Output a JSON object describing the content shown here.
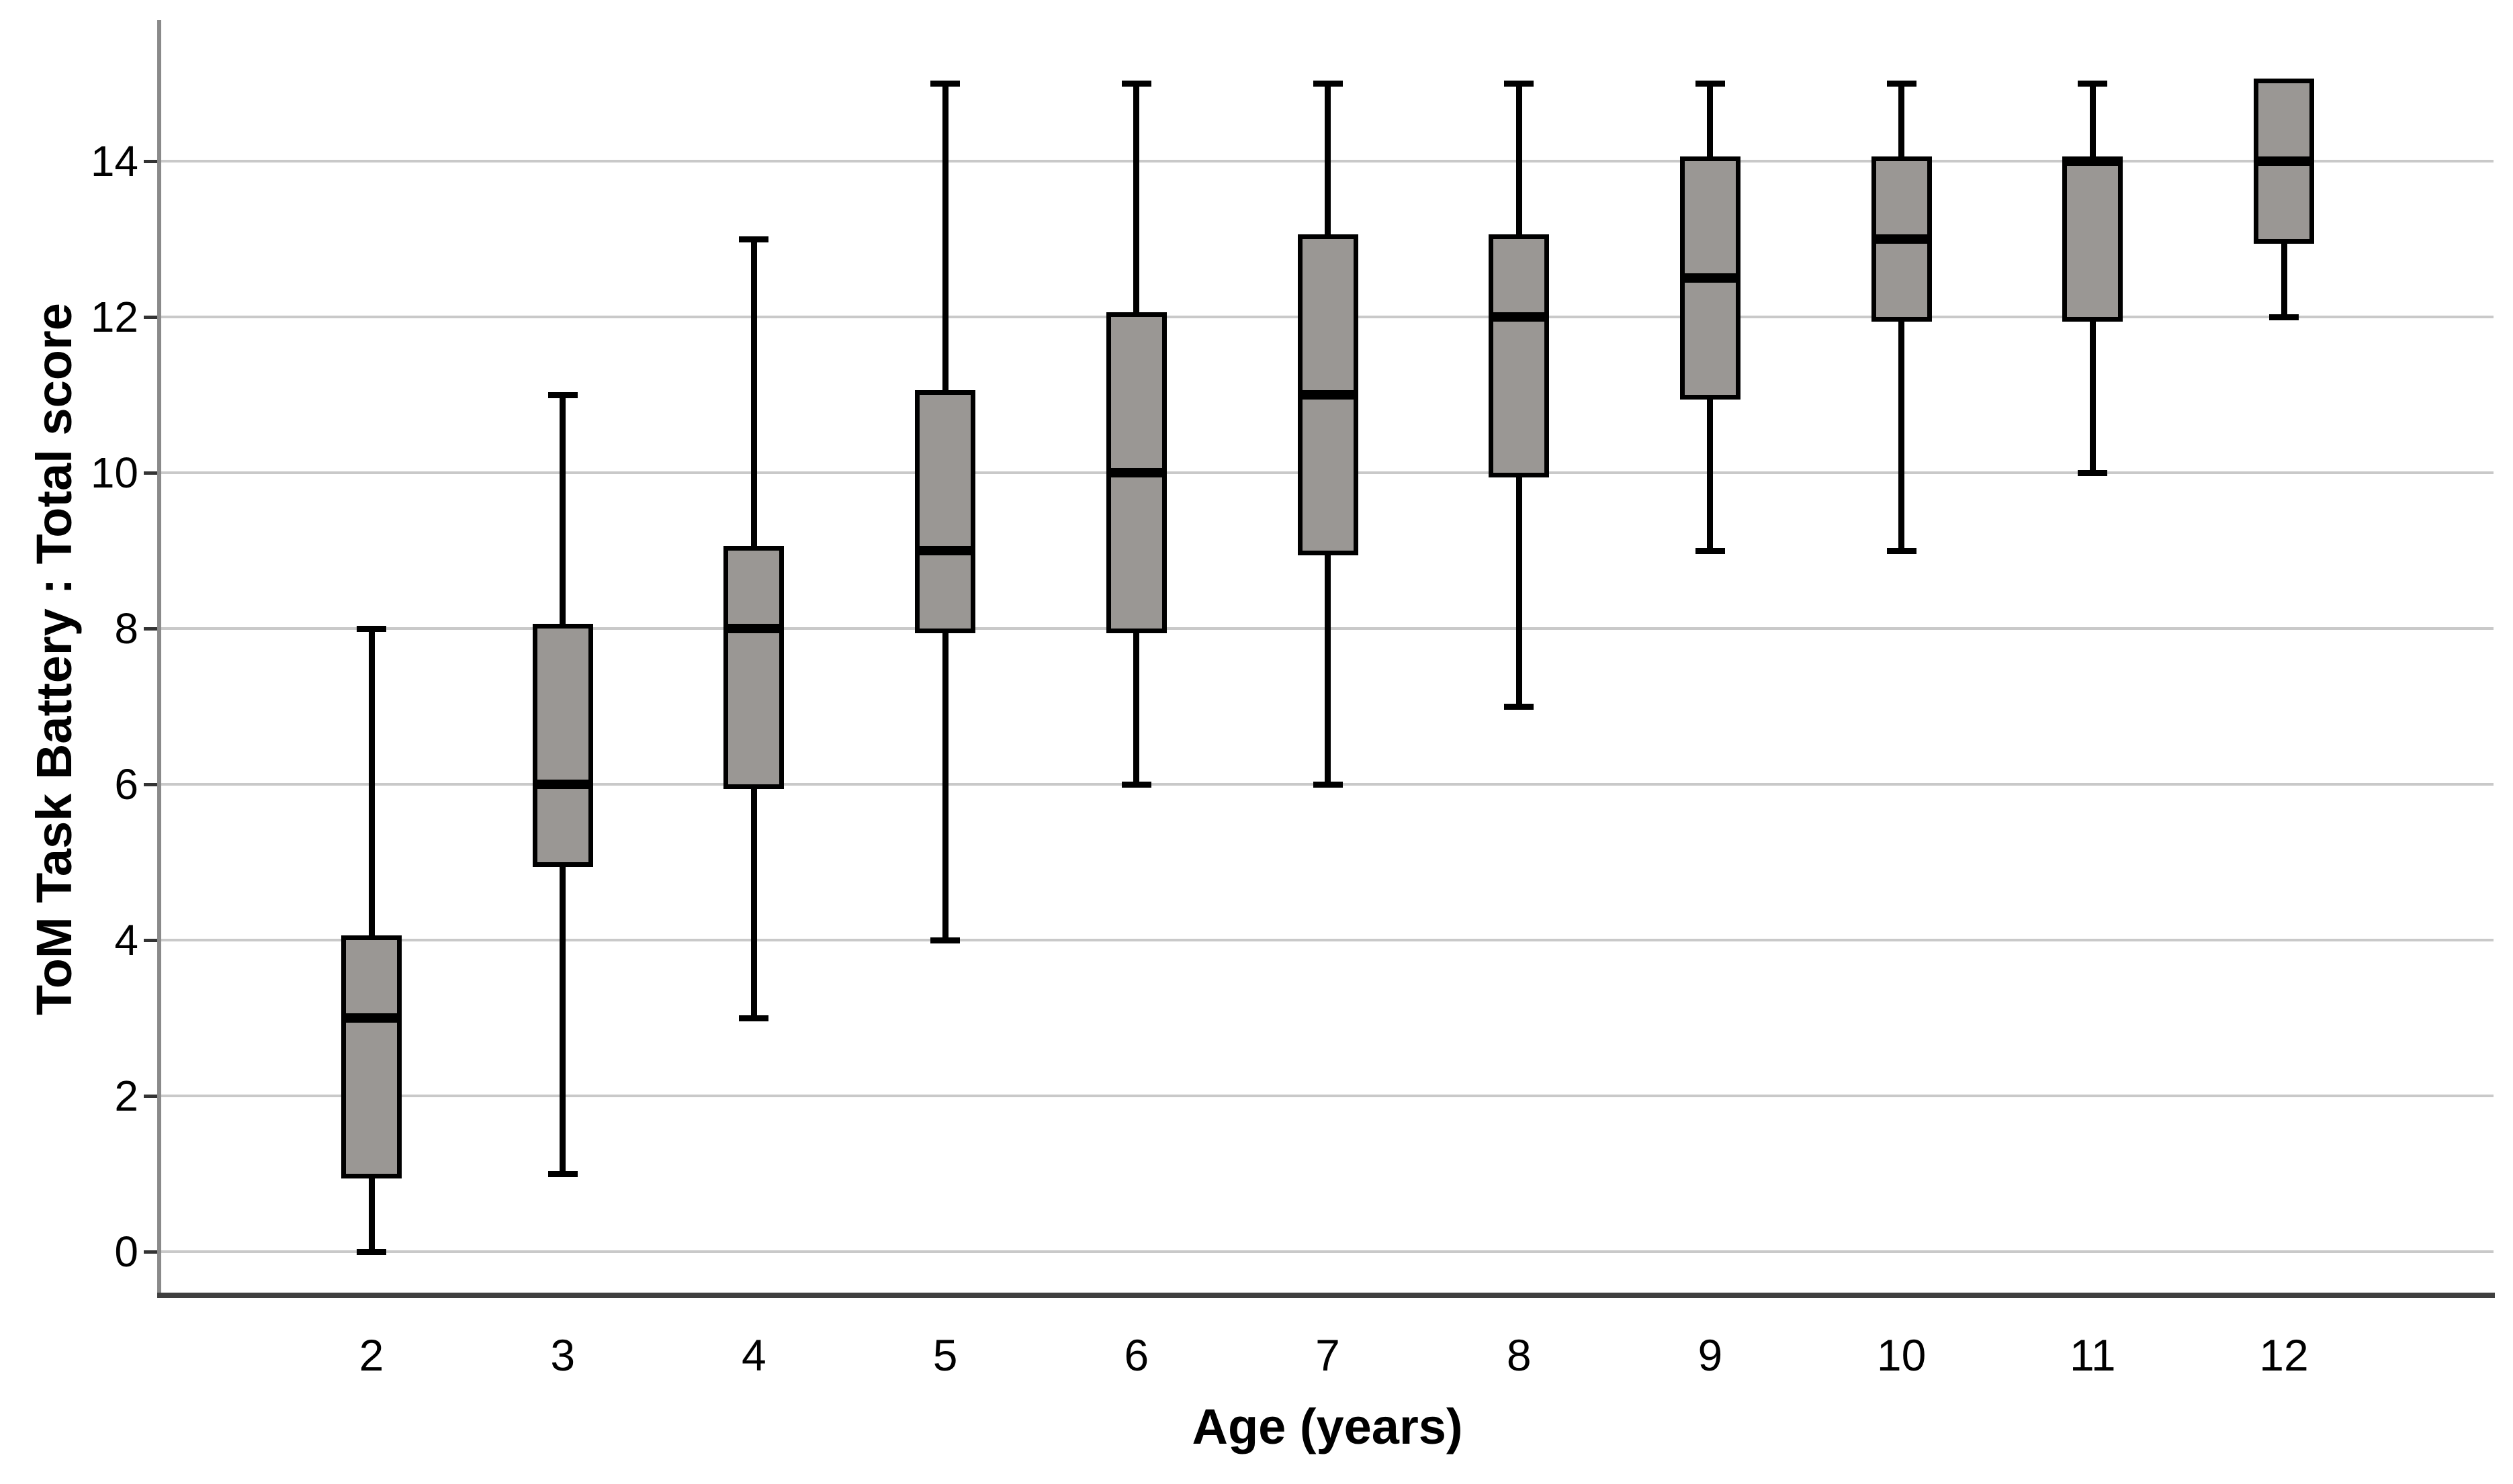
{
  "chart_data": {
    "type": "boxplot",
    "title": "",
    "xlabel": "Age (years)",
    "ylabel": "ToM Task Battery : Total score",
    "categories": [
      "2",
      "3",
      "4",
      "5",
      "6",
      "7",
      "8",
      "9",
      "10",
      "11",
      "12"
    ],
    "y_ticks": [
      "0",
      "2",
      "4",
      "6",
      "8",
      "10",
      "12",
      "14"
    ],
    "ylim": [
      -0.6,
      15.6
    ],
    "grid": "horizontal-only",
    "legend": "none",
    "series": [
      {
        "age": "2",
        "min": 0,
        "q1": 1,
        "median": 3,
        "q3": 4,
        "max": 8
      },
      {
        "age": "3",
        "min": 1,
        "q1": 5,
        "median": 6,
        "q3": 8,
        "max": 11
      },
      {
        "age": "4",
        "min": 3,
        "q1": 6,
        "median": 8,
        "q3": 9,
        "max": 13
      },
      {
        "age": "5",
        "min": 4,
        "q1": 8,
        "median": 9,
        "q3": 11,
        "max": 15
      },
      {
        "age": "6",
        "min": 6,
        "q1": 8,
        "median": 10,
        "q3": 12,
        "max": 15
      },
      {
        "age": "7",
        "min": 6,
        "q1": 9,
        "median": 11,
        "q3": 13,
        "max": 15
      },
      {
        "age": "8",
        "min": 7,
        "q1": 10,
        "median": 12,
        "q3": 13,
        "max": 15
      },
      {
        "age": "9",
        "min": 9,
        "q1": 11,
        "median": 12.5,
        "q3": 14,
        "max": 15
      },
      {
        "age": "10",
        "min": 9,
        "q1": 12,
        "median": 13,
        "q3": 14,
        "max": 15
      },
      {
        "age": "11",
        "min": 10,
        "q1": 12,
        "median": 14,
        "q3": 14,
        "max": 15
      },
      {
        "age": "12",
        "min": 12,
        "q1": 13,
        "median": 14,
        "q3": 15,
        "max": 15
      }
    ],
    "colors": {
      "box_fill": "#9a9794",
      "box_border": "#000000",
      "median": "#000000",
      "whisker": "#000000",
      "gridline": "#c9c9c9",
      "y_axis": "#8a8a8a",
      "x_axis": "#3f3f3f",
      "background": "#ffffff"
    }
  }
}
